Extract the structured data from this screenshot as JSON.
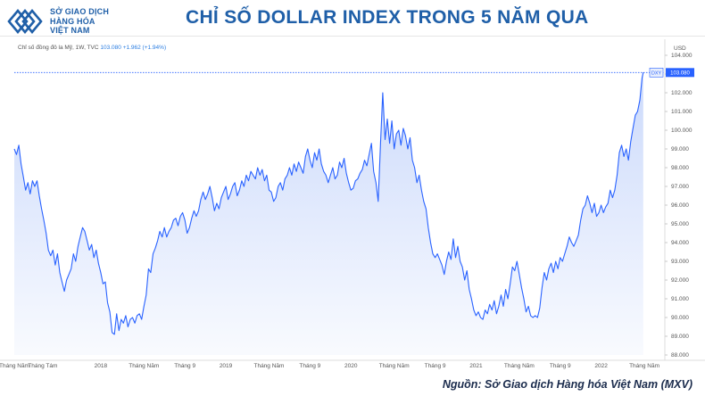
{
  "brand": {
    "line1": "SỞ GIAO DỊCH",
    "line2": "HÀNG HÓA",
    "line3": "VIỆT NAM",
    "color": "#1f5fa8"
  },
  "header": {
    "title": "CHỈ SỐ DOLLAR INDEX TRONG 5 NĂM QUA"
  },
  "chart_meta": {
    "instrument": "Chỉ số đồng đô la Mỹ, 1W, TVC",
    "last_value": "103.080",
    "change": "+1.962 (+1.94%)"
  },
  "source": "Nguồn: Sở Giao dịch Hàng hóa Việt Nam (MXV)",
  "chart_data": {
    "type": "area",
    "title": "CHỈ SỐ DOLLAR INDEX TRONG 5 NĂM QUA",
    "y_unit": "USD",
    "ylim": [
      88,
      104
    ],
    "y_ticks": [
      "88.000",
      "89.000",
      "90.000",
      "91.000",
      "92.000",
      "93.000",
      "94.000",
      "95.000",
      "96.000",
      "97.000",
      "98.000",
      "99.000",
      "100.000",
      "101.000",
      "102.000",
      "103.000",
      "104.000"
    ],
    "x_ticks": [
      {
        "t": 0.0,
        "label": "Tháng Năm"
      },
      {
        "t": 2.5,
        "label": "Tháng Tám"
      },
      {
        "t": 7.6,
        "label": "2018"
      },
      {
        "t": 11.4,
        "label": "Tháng Năm"
      },
      {
        "t": 15.0,
        "label": "Tháng 9"
      },
      {
        "t": 18.6,
        "label": "2019"
      },
      {
        "t": 22.4,
        "label": "Tháng Năm"
      },
      {
        "t": 26.0,
        "label": "Tháng 9"
      },
      {
        "t": 29.6,
        "label": "2020"
      },
      {
        "t": 33.4,
        "label": "Tháng Năm"
      },
      {
        "t": 37.0,
        "label": "Tháng 9"
      },
      {
        "t": 40.6,
        "label": "2021"
      },
      {
        "t": 44.4,
        "label": "Tháng Năm"
      },
      {
        "t": 48.0,
        "label": "Tháng 9"
      },
      {
        "t": 51.6,
        "label": "2022"
      },
      {
        "t": 55.4,
        "label": "Tháng Năm"
      }
    ],
    "last_label": "DXY",
    "last_value": 103.08,
    "series": [
      {
        "values": [
          [
            0.0,
            99.0
          ],
          [
            0.2,
            98.7
          ],
          [
            0.4,
            99.2
          ],
          [
            0.6,
            98.2
          ],
          [
            0.8,
            97.5
          ],
          [
            1.0,
            96.8
          ],
          [
            1.2,
            97.2
          ],
          [
            1.4,
            96.6
          ],
          [
            1.6,
            97.3
          ],
          [
            1.8,
            97.0
          ],
          [
            2.0,
            97.3
          ],
          [
            2.2,
            96.5
          ],
          [
            2.4,
            95.8
          ],
          [
            2.6,
            95.2
          ],
          [
            2.8,
            94.5
          ],
          [
            3.0,
            93.6
          ],
          [
            3.2,
            93.3
          ],
          [
            3.4,
            93.6
          ],
          [
            3.6,
            92.8
          ],
          [
            3.8,
            93.4
          ],
          [
            4.0,
            92.4
          ],
          [
            4.2,
            91.9
          ],
          [
            4.4,
            91.4
          ],
          [
            4.6,
            92.0
          ],
          [
            4.8,
            92.3
          ],
          [
            5.0,
            92.6
          ],
          [
            5.2,
            93.4
          ],
          [
            5.4,
            93.0
          ],
          [
            5.6,
            93.8
          ],
          [
            5.8,
            94.3
          ],
          [
            6.0,
            94.8
          ],
          [
            6.2,
            94.6
          ],
          [
            6.4,
            94.1
          ],
          [
            6.6,
            93.6
          ],
          [
            6.8,
            93.9
          ],
          [
            7.0,
            93.2
          ],
          [
            7.2,
            93.6
          ],
          [
            7.4,
            92.9
          ],
          [
            7.6,
            92.4
          ],
          [
            7.8,
            91.8
          ],
          [
            8.0,
            91.9
          ],
          [
            8.2,
            90.8
          ],
          [
            8.4,
            90.3
          ],
          [
            8.6,
            89.2
          ],
          [
            8.8,
            89.1
          ],
          [
            9.0,
            90.2
          ],
          [
            9.2,
            89.3
          ],
          [
            9.4,
            89.9
          ],
          [
            9.6,
            89.7
          ],
          [
            9.8,
            90.1
          ],
          [
            10.0,
            89.5
          ],
          [
            10.2,
            89.9
          ],
          [
            10.4,
            90.0
          ],
          [
            10.6,
            89.7
          ],
          [
            10.8,
            90.1
          ],
          [
            11.0,
            90.2
          ],
          [
            11.2,
            89.9
          ],
          [
            11.4,
            90.6
          ],
          [
            11.6,
            91.2
          ],
          [
            11.8,
            92.6
          ],
          [
            12.0,
            92.4
          ],
          [
            12.2,
            93.4
          ],
          [
            12.4,
            93.7
          ],
          [
            12.6,
            94.1
          ],
          [
            12.8,
            94.6
          ],
          [
            13.0,
            94.3
          ],
          [
            13.2,
            94.8
          ],
          [
            13.4,
            94.3
          ],
          [
            13.6,
            94.6
          ],
          [
            13.8,
            94.8
          ],
          [
            14.0,
            95.2
          ],
          [
            14.2,
            95.3
          ],
          [
            14.4,
            94.9
          ],
          [
            14.6,
            95.4
          ],
          [
            14.8,
            95.6
          ],
          [
            15.0,
            95.2
          ],
          [
            15.2,
            94.5
          ],
          [
            15.4,
            94.8
          ],
          [
            15.6,
            95.3
          ],
          [
            15.8,
            95.7
          ],
          [
            16.0,
            95.4
          ],
          [
            16.2,
            95.7
          ],
          [
            16.4,
            96.3
          ],
          [
            16.6,
            96.7
          ],
          [
            16.8,
            96.3
          ],
          [
            17.0,
            96.6
          ],
          [
            17.2,
            97.0
          ],
          [
            17.4,
            96.4
          ],
          [
            17.6,
            95.7
          ],
          [
            17.8,
            96.1
          ],
          [
            18.0,
            95.8
          ],
          [
            18.2,
            96.4
          ],
          [
            18.4,
            96.7
          ],
          [
            18.6,
            97.0
          ],
          [
            18.8,
            96.3
          ],
          [
            19.0,
            96.6
          ],
          [
            19.2,
            97.0
          ],
          [
            19.4,
            97.2
          ],
          [
            19.6,
            96.5
          ],
          [
            19.8,
            96.8
          ],
          [
            20.0,
            97.3
          ],
          [
            20.2,
            97.0
          ],
          [
            20.4,
            97.6
          ],
          [
            20.6,
            97.3
          ],
          [
            20.8,
            97.8
          ],
          [
            21.0,
            97.6
          ],
          [
            21.2,
            97.4
          ],
          [
            21.4,
            98.0
          ],
          [
            21.6,
            97.6
          ],
          [
            21.8,
            97.9
          ],
          [
            22.0,
            97.3
          ],
          [
            22.2,
            97.6
          ],
          [
            22.4,
            96.8
          ],
          [
            22.6,
            96.7
          ],
          [
            22.8,
            96.2
          ],
          [
            23.0,
            96.4
          ],
          [
            23.2,
            97.0
          ],
          [
            23.4,
            97.2
          ],
          [
            23.6,
            96.8
          ],
          [
            23.8,
            97.4
          ],
          [
            24.0,
            97.6
          ],
          [
            24.2,
            98.0
          ],
          [
            24.4,
            97.6
          ],
          [
            24.6,
            98.2
          ],
          [
            24.8,
            97.8
          ],
          [
            25.0,
            98.3
          ],
          [
            25.2,
            98.0
          ],
          [
            25.4,
            97.7
          ],
          [
            25.6,
            98.6
          ],
          [
            25.8,
            99.0
          ],
          [
            26.0,
            98.4
          ],
          [
            26.2,
            98.0
          ],
          [
            26.4,
            98.8
          ],
          [
            26.6,
            98.4
          ],
          [
            26.8,
            99.0
          ],
          [
            27.0,
            98.2
          ],
          [
            27.2,
            97.8
          ],
          [
            27.4,
            97.6
          ],
          [
            27.6,
            97.2
          ],
          [
            27.8,
            97.6
          ],
          [
            28.0,
            98.0
          ],
          [
            28.2,
            97.4
          ],
          [
            28.4,
            97.6
          ],
          [
            28.6,
            98.3
          ],
          [
            28.8,
            98.0
          ],
          [
            29.0,
            98.5
          ],
          [
            29.2,
            97.7
          ],
          [
            29.4,
            97.2
          ],
          [
            29.6,
            96.8
          ],
          [
            29.8,
            96.9
          ],
          [
            30.0,
            97.3
          ],
          [
            30.2,
            97.4
          ],
          [
            30.4,
            97.7
          ],
          [
            30.6,
            97.9
          ],
          [
            30.8,
            98.4
          ],
          [
            31.0,
            98.1
          ],
          [
            31.2,
            98.7
          ],
          [
            31.4,
            99.3
          ],
          [
            31.6,
            97.8
          ],
          [
            31.8,
            97.2
          ],
          [
            32.0,
            96.2
          ],
          [
            32.2,
            99.3
          ],
          [
            32.4,
            102.0
          ],
          [
            32.6,
            99.5
          ],
          [
            32.8,
            100.6
          ],
          [
            33.0,
            99.3
          ],
          [
            33.2,
            100.5
          ],
          [
            33.4,
            99.0
          ],
          [
            33.6,
            99.8
          ],
          [
            33.8,
            100.0
          ],
          [
            34.0,
            99.2
          ],
          [
            34.2,
            100.1
          ],
          [
            34.4,
            99.7
          ],
          [
            34.6,
            99.0
          ],
          [
            34.8,
            99.6
          ],
          [
            35.0,
            98.4
          ],
          [
            35.2,
            98.0
          ],
          [
            35.4,
            97.2
          ],
          [
            35.6,
            97.6
          ],
          [
            35.8,
            96.8
          ],
          [
            36.0,
            96.2
          ],
          [
            36.2,
            95.8
          ],
          [
            36.4,
            94.8
          ],
          [
            36.6,
            94.0
          ],
          [
            36.8,
            93.4
          ],
          [
            37.0,
            93.2
          ],
          [
            37.2,
            93.4
          ],
          [
            37.4,
            93.1
          ],
          [
            37.6,
            92.8
          ],
          [
            37.8,
            92.3
          ],
          [
            38.0,
            93.0
          ],
          [
            38.2,
            93.5
          ],
          [
            38.4,
            93.1
          ],
          [
            38.6,
            94.2
          ],
          [
            38.8,
            93.2
          ],
          [
            39.0,
            93.8
          ],
          [
            39.2,
            93.0
          ],
          [
            39.4,
            92.7
          ],
          [
            39.6,
            92.0
          ],
          [
            39.8,
            92.5
          ],
          [
            40.0,
            91.5
          ],
          [
            40.2,
            91.0
          ],
          [
            40.4,
            90.4
          ],
          [
            40.6,
            90.1
          ],
          [
            40.8,
            90.3
          ],
          [
            41.0,
            90.0
          ],
          [
            41.2,
            89.9
          ],
          [
            41.4,
            90.4
          ],
          [
            41.6,
            90.2
          ],
          [
            41.8,
            90.7
          ],
          [
            42.0,
            90.4
          ],
          [
            42.2,
            90.9
          ],
          [
            42.4,
            90.2
          ],
          [
            42.6,
            90.6
          ],
          [
            42.8,
            91.2
          ],
          [
            43.0,
            90.6
          ],
          [
            43.2,
            91.5
          ],
          [
            43.4,
            91.0
          ],
          [
            43.6,
            91.8
          ],
          [
            43.8,
            92.7
          ],
          [
            44.0,
            92.5
          ],
          [
            44.2,
            93.0
          ],
          [
            44.4,
            92.3
          ],
          [
            44.6,
            91.6
          ],
          [
            44.8,
            91.0
          ],
          [
            45.0,
            90.3
          ],
          [
            45.2,
            90.6
          ],
          [
            45.4,
            90.1
          ],
          [
            45.6,
            90.0
          ],
          [
            45.8,
            90.1
          ],
          [
            46.0,
            90.0
          ],
          [
            46.2,
            90.5
          ],
          [
            46.4,
            91.6
          ],
          [
            46.6,
            92.4
          ],
          [
            46.8,
            92.0
          ],
          [
            47.0,
            92.6
          ],
          [
            47.2,
            92.9
          ],
          [
            47.4,
            92.4
          ],
          [
            47.6,
            93.0
          ],
          [
            47.8,
            92.6
          ],
          [
            48.0,
            93.2
          ],
          [
            48.2,
            93.0
          ],
          [
            48.4,
            93.4
          ],
          [
            48.6,
            93.8
          ],
          [
            48.8,
            94.3
          ],
          [
            49.0,
            94.0
          ],
          [
            49.2,
            93.8
          ],
          [
            49.4,
            94.1
          ],
          [
            49.6,
            94.4
          ],
          [
            49.8,
            95.2
          ],
          [
            50.0,
            95.8
          ],
          [
            50.2,
            96.0
          ],
          [
            50.4,
            96.5
          ],
          [
            50.6,
            96.1
          ],
          [
            50.8,
            95.6
          ],
          [
            51.0,
            96.1
          ],
          [
            51.2,
            95.4
          ],
          [
            51.4,
            95.6
          ],
          [
            51.6,
            96.0
          ],
          [
            51.8,
            95.6
          ],
          [
            52.0,
            95.9
          ],
          [
            52.2,
            96.1
          ],
          [
            52.4,
            96.8
          ],
          [
            52.6,
            96.4
          ],
          [
            52.8,
            96.8
          ],
          [
            53.0,
            97.6
          ],
          [
            53.2,
            98.8
          ],
          [
            53.4,
            99.2
          ],
          [
            53.6,
            98.6
          ],
          [
            53.8,
            99.0
          ],
          [
            54.0,
            98.4
          ],
          [
            54.2,
            99.4
          ],
          [
            54.4,
            100.1
          ],
          [
            54.6,
            100.8
          ],
          [
            54.8,
            101.0
          ],
          [
            55.0,
            101.6
          ],
          [
            55.2,
            102.8
          ],
          [
            55.3,
            103.08
          ]
        ]
      }
    ],
    "line_color": "#2962ff",
    "fill_color": "#c9d8fb",
    "grid": false
  }
}
